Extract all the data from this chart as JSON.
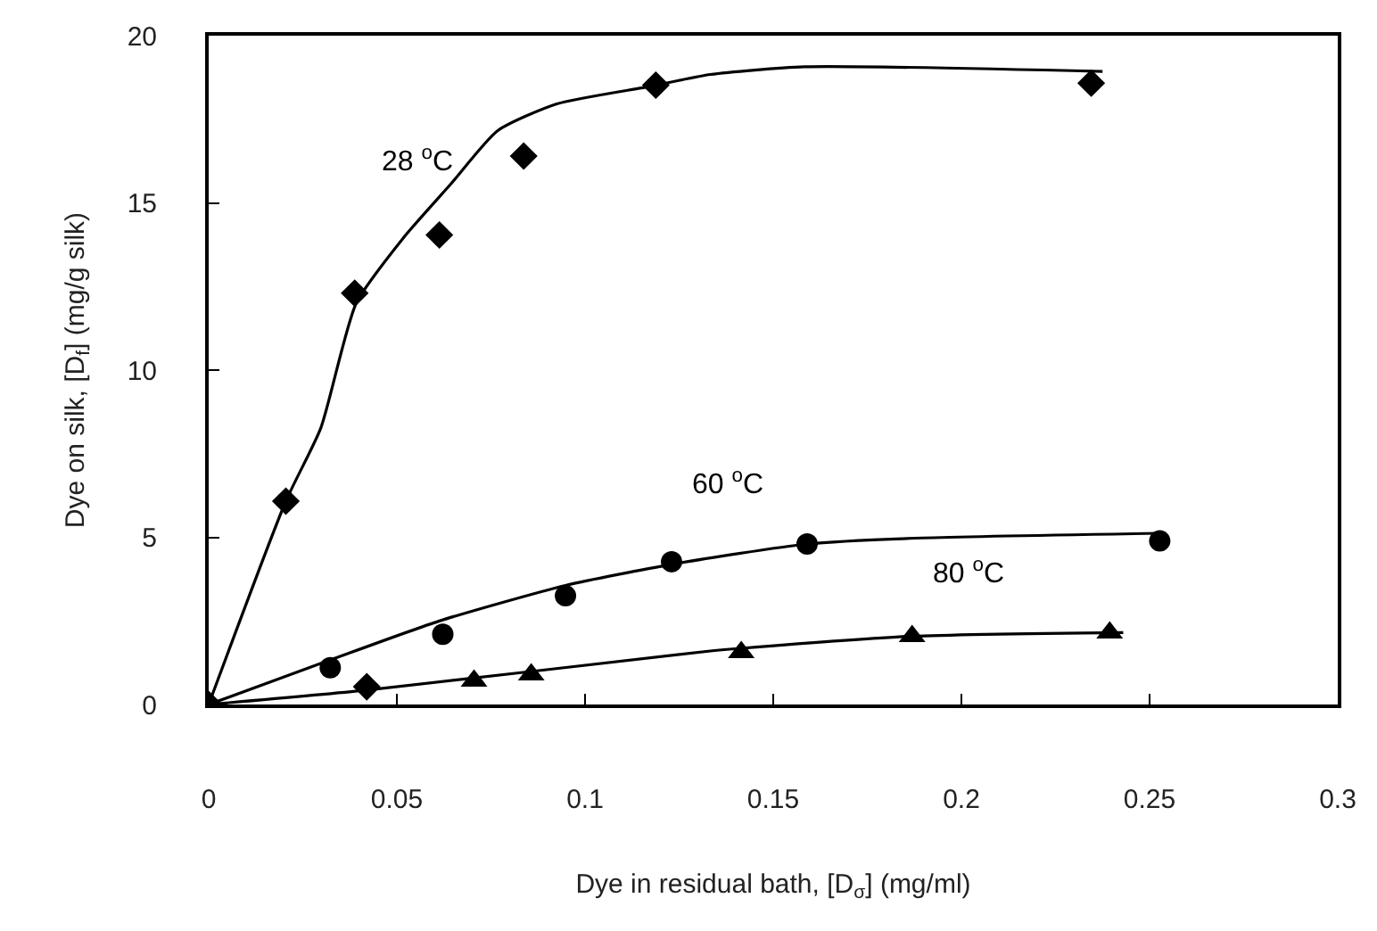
{
  "chart_data": {
    "type": "scatter",
    "xlabel": "Dye in residual bath, [D$_{σ}$] (mg/ml)",
    "ylabel": "Dye on silk, [D$_{f}$] (mg/g silk)",
    "xlim": [
      0,
      0.3
    ],
    "xticks": [
      0,
      0.05,
      0.1,
      0.15,
      0.2,
      0.25,
      0.3
    ],
    "ylim": [
      0,
      20
    ],
    "yticks": [
      0,
      5,
      10,
      15,
      20
    ],
    "series": [
      {
        "type": "line",
        "color": "#000000",
        "marker": "none",
        "x": [
          0,
          0.0205,
          0.0298,
          0.0392,
          0.0517,
          0.0643,
          0.0768,
          0.0925,
          0.1176,
          0.1333,
          0.1583,
          0.2375
        ],
        "values": [
          0,
          6.08,
          8.27,
          12.0,
          13.95,
          15.56,
          17.16,
          17.96,
          18.49,
          18.84,
          19.07,
          18.93
        ]
      },
      {
        "type": "line",
        "color": "#000000",
        "marker": "none",
        "x": [
          0,
          0.0323,
          0.0611,
          0.0948,
          0.123,
          0.159,
          0.1897,
          0.2527
        ],
        "values": [
          0,
          1.33,
          2.49,
          3.56,
          4.19,
          4.8,
          4.98,
          5.12
        ]
      },
      {
        "type": "line",
        "color": "#000000",
        "marker": "none",
        "x": [
          0,
          0.042,
          0.1333,
          0.1415,
          0.1869,
          0.243
        ],
        "values": [
          0,
          0.43,
          1.6,
          1.68,
          2.04,
          2.15
        ]
      },
      {
        "color": "#000000",
        "marker": "diamond",
        "x": [
          0,
          0.0205,
          0.0388,
          0.0613,
          0.0837,
          0.1188,
          0.2345
        ],
        "values": [
          0,
          6.08,
          12.3,
          14.04,
          16.4,
          18.52,
          18.58
        ]
      },
      {
        "color": "#000000",
        "marker": "circle",
        "x": [
          0.0323,
          0.0622,
          0.0948,
          0.123,
          0.159,
          0.2527
        ],
        "values": [
          1.1,
          2.1,
          3.25,
          4.27,
          4.8,
          4.89
        ]
      },
      {
        "color": "#000000",
        "marker": "triangle",
        "x": [
          0.0705,
          0.0857,
          0.1415,
          0.1869,
          0.2394
        ],
        "values": [
          0.71,
          0.89,
          1.56,
          2.04,
          2.15
        ]
      },
      {
        "color": "#000000",
        "marker": "diamond",
        "x": [
          0.042
        ],
        "values": [
          0.53
        ]
      }
    ],
    "annotations": [
      "28 $^{o}$C",
      "60 $^{o}$C",
      "80 $^{o}$C"
    ]
  }
}
